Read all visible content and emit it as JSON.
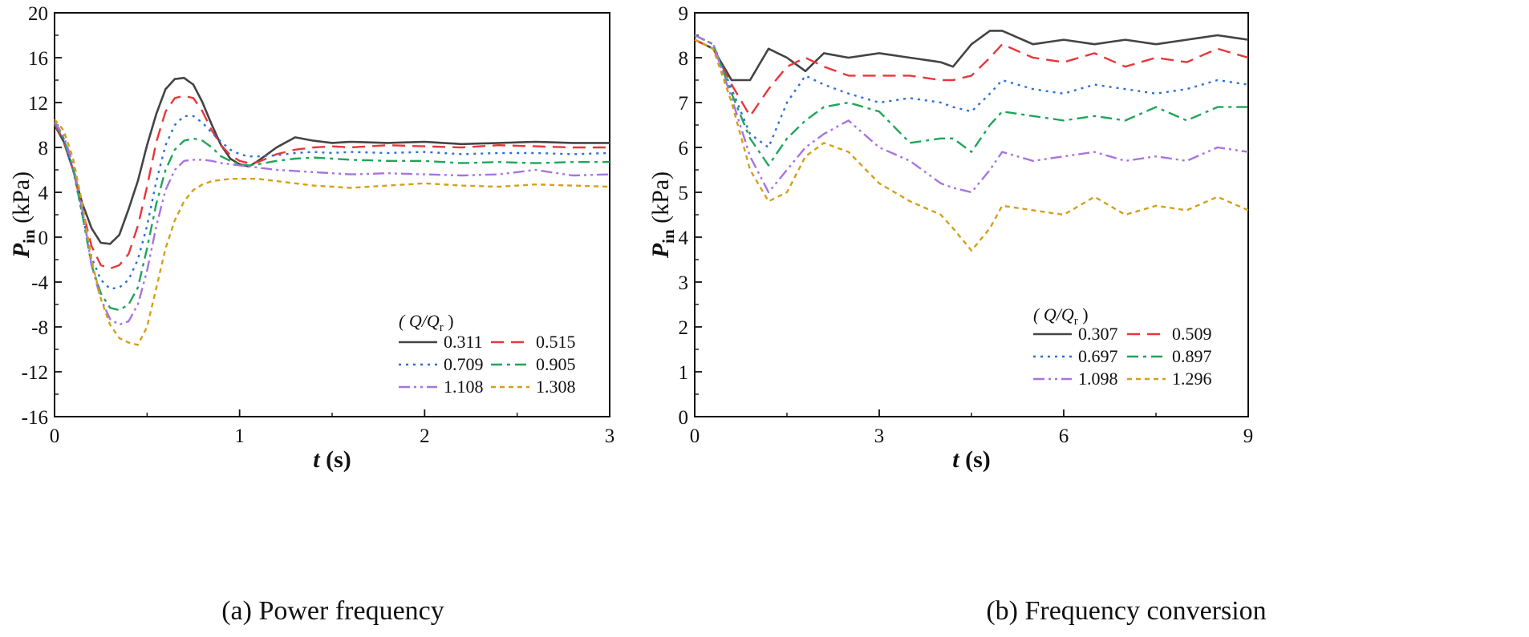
{
  "panels": [
    {
      "caption": "(a) Power frequency",
      "legend_title": "( Q/Q",
      "legend_title_sub": "r",
      "legend_title_close": " )"
    },
    {
      "caption": "(b) Frequency conversion",
      "legend_title": "( Q/Q",
      "legend_title_sub": "r",
      "legend_title_close": " )"
    }
  ],
  "chart_data": [
    {
      "type": "line",
      "caption": "(a) Power frequency",
      "xlabel_var": "t",
      "xlabel_unit": "(s)",
      "ylabel_var": "P",
      "ylabel_sub": "in",
      "ylabel_unit": "(kPa)",
      "xlim": [
        0,
        3
      ],
      "ylim": [
        -16,
        20
      ],
      "xticks": [
        0,
        1,
        2,
        3
      ],
      "yticks": [
        -16,
        -12,
        -8,
        -4,
        0,
        4,
        8,
        12,
        16,
        20
      ],
      "legend_title": "( Q/Qr )",
      "legend_position": "bottom-right",
      "series": [
        {
          "name": "0.311",
          "color": "#444444",
          "dash": "solid",
          "x": [
            0,
            0.05,
            0.1,
            0.15,
            0.2,
            0.25,
            0.3,
            0.35,
            0.4,
            0.45,
            0.5,
            0.55,
            0.6,
            0.65,
            0.7,
            0.75,
            0.8,
            0.85,
            0.9,
            0.95,
            1.0,
            1.05,
            1.1,
            1.2,
            1.3,
            1.4,
            1.5,
            1.6,
            1.8,
            2.0,
            2.2,
            2.4,
            2.6,
            2.8,
            3.0
          ],
          "y": [
            10.0,
            8.5,
            6.0,
            3.0,
            0.8,
            -0.5,
            -0.6,
            0.2,
            2.5,
            5.0,
            8.2,
            11.0,
            13.2,
            14.1,
            14.2,
            13.6,
            12.0,
            10.0,
            8.2,
            7.0,
            6.5,
            6.3,
            6.8,
            8.0,
            8.9,
            8.6,
            8.4,
            8.5,
            8.4,
            8.5,
            8.3,
            8.4,
            8.5,
            8.4,
            8.4
          ]
        },
        {
          "name": "0.515",
          "color": "#e8363a",
          "dash": "long",
          "x": [
            0,
            0.05,
            0.1,
            0.15,
            0.2,
            0.25,
            0.3,
            0.35,
            0.4,
            0.45,
            0.5,
            0.55,
            0.6,
            0.65,
            0.7,
            0.75,
            0.8,
            0.85,
            0.9,
            0.95,
            1.0,
            1.05,
            1.1,
            1.2,
            1.3,
            1.4,
            1.5,
            1.6,
            1.8,
            2.0,
            2.2,
            2.4,
            2.6,
            2.8,
            3.0
          ],
          "y": [
            10.1,
            8.6,
            6.0,
            2.5,
            -0.8,
            -2.5,
            -2.8,
            -2.5,
            -1.5,
            1.0,
            4.5,
            8.5,
            11.2,
            12.4,
            12.6,
            12.4,
            11.2,
            9.5,
            8.2,
            7.3,
            6.8,
            6.6,
            6.7,
            7.4,
            7.8,
            8.0,
            8.1,
            8.0,
            8.2,
            8.1,
            8.0,
            8.2,
            8.1,
            8.0,
            8.0
          ]
        },
        {
          "name": "0.709",
          "color": "#2d6fd6",
          "dash": "dot",
          "x": [
            0,
            0.05,
            0.1,
            0.15,
            0.2,
            0.25,
            0.3,
            0.35,
            0.4,
            0.45,
            0.5,
            0.55,
            0.6,
            0.65,
            0.7,
            0.75,
            0.8,
            0.85,
            0.9,
            0.95,
            1.0,
            1.05,
            1.1,
            1.2,
            1.3,
            1.4,
            1.5,
            1.6,
            1.8,
            2.0,
            2.2,
            2.4,
            2.6,
            2.8,
            3.0
          ],
          "y": [
            10.2,
            8.7,
            6.0,
            2.0,
            -1.8,
            -3.8,
            -4.6,
            -4.5,
            -3.8,
            -2.0,
            1.0,
            5.0,
            8.2,
            10.0,
            10.8,
            10.8,
            10.2,
            9.3,
            8.5,
            7.8,
            7.4,
            7.2,
            7.2,
            7.3,
            7.5,
            7.6,
            7.5,
            7.6,
            7.5,
            7.6,
            7.4,
            7.5,
            7.5,
            7.4,
            7.5
          ]
        },
        {
          "name": "0.905",
          "color": "#1fa55a",
          "dash": "dashdot",
          "x": [
            0,
            0.05,
            0.1,
            0.15,
            0.2,
            0.25,
            0.3,
            0.35,
            0.4,
            0.45,
            0.5,
            0.55,
            0.6,
            0.65,
            0.7,
            0.75,
            0.8,
            0.85,
            0.9,
            0.95,
            1.0,
            1.05,
            1.1,
            1.2,
            1.3,
            1.4,
            1.5,
            1.6,
            1.8,
            2.0,
            2.2,
            2.4,
            2.6,
            2.8,
            3.0
          ],
          "y": [
            10.2,
            8.8,
            6.2,
            2.0,
            -2.5,
            -5.0,
            -6.3,
            -6.5,
            -6.0,
            -4.5,
            -1.0,
            3.0,
            6.0,
            7.8,
            8.6,
            8.8,
            8.6,
            8.0,
            7.2,
            6.8,
            6.5,
            6.4,
            6.5,
            6.8,
            7.0,
            7.1,
            7.0,
            6.9,
            6.8,
            6.8,
            6.6,
            6.7,
            6.6,
            6.7,
            6.7
          ]
        },
        {
          "name": "1.108",
          "color": "#a774e0",
          "dash": "dashdotdot",
          "x": [
            0,
            0.05,
            0.1,
            0.15,
            0.2,
            0.25,
            0.3,
            0.35,
            0.4,
            0.45,
            0.5,
            0.55,
            0.6,
            0.65,
            0.7,
            0.75,
            0.8,
            0.85,
            0.9,
            0.95,
            1.0,
            1.05,
            1.1,
            1.2,
            1.3,
            1.4,
            1.5,
            1.6,
            1.8,
            2.0,
            2.2,
            2.4,
            2.6,
            2.8,
            3.0
          ],
          "y": [
            10.3,
            9.0,
            6.5,
            2.5,
            -2.5,
            -5.5,
            -7.3,
            -7.8,
            -7.5,
            -6.0,
            -3.0,
            1.0,
            4.2,
            6.0,
            6.8,
            6.9,
            6.9,
            6.8,
            6.6,
            6.5,
            6.4,
            6.3,
            6.2,
            6.0,
            5.9,
            5.8,
            5.7,
            5.6,
            5.7,
            5.6,
            5.5,
            5.6,
            6.0,
            5.5,
            5.6
          ]
        },
        {
          "name": "1.308",
          "color": "#d4a017",
          "dash": "shortdash",
          "x": [
            0,
            0.05,
            0.1,
            0.15,
            0.2,
            0.25,
            0.3,
            0.35,
            0.4,
            0.45,
            0.5,
            0.55,
            0.6,
            0.65,
            0.7,
            0.75,
            0.8,
            0.85,
            0.9,
            0.95,
            1.0,
            1.05,
            1.1,
            1.2,
            1.3,
            1.4,
            1.5,
            1.6,
            1.8,
            2.0,
            2.2,
            2.4,
            2.6,
            2.8,
            3.0
          ],
          "y": [
            10.5,
            9.5,
            7.0,
            3.0,
            -2.0,
            -5.5,
            -7.8,
            -9.0,
            -9.4,
            -9.6,
            -8.0,
            -4.5,
            -1.0,
            1.5,
            3.2,
            4.2,
            4.7,
            5.0,
            5.1,
            5.2,
            5.2,
            5.2,
            5.2,
            5.0,
            4.8,
            4.6,
            4.5,
            4.4,
            4.6,
            4.8,
            4.6,
            4.5,
            4.7,
            4.6,
            4.5
          ]
        }
      ]
    },
    {
      "type": "line",
      "caption": "(b) Frequency conversion",
      "xlabel_var": "t",
      "xlabel_unit": "(s)",
      "ylabel_var": "P",
      "ylabel_sub": "in",
      "ylabel_unit": "(kPa)",
      "xlim": [
        0,
        9
      ],
      "ylim": [
        0,
        9
      ],
      "xticks": [
        0,
        3,
        6,
        9
      ],
      "yticks": [
        0,
        1,
        2,
        3,
        4,
        5,
        6,
        7,
        8,
        9
      ],
      "legend_title": "( Q/Qr )",
      "legend_position": "bottom-right",
      "series": [
        {
          "name": "0.307",
          "color": "#444444",
          "dash": "solid",
          "x": [
            0,
            0.3,
            0.6,
            0.9,
            1.2,
            1.5,
            1.8,
            2.1,
            2.5,
            3.0,
            3.5,
            4.0,
            4.2,
            4.5,
            4.8,
            5.0,
            5.5,
            6.0,
            6.5,
            7.0,
            7.5,
            8.0,
            8.5,
            9.0
          ],
          "y": [
            8.4,
            8.2,
            7.5,
            7.5,
            8.2,
            8.0,
            7.7,
            8.1,
            8.0,
            8.1,
            8.0,
            7.9,
            7.8,
            8.3,
            8.6,
            8.6,
            8.3,
            8.4,
            8.3,
            8.4,
            8.3,
            8.4,
            8.5,
            8.4
          ]
        },
        {
          "name": "0.509",
          "color": "#e8363a",
          "dash": "long",
          "x": [
            0,
            0.3,
            0.6,
            0.9,
            1.2,
            1.5,
            1.8,
            2.1,
            2.5,
            3.0,
            3.5,
            4.0,
            4.2,
            4.5,
            4.8,
            5.0,
            5.5,
            6.0,
            6.5,
            7.0,
            7.5,
            8.0,
            8.5,
            9.0
          ],
          "y": [
            8.4,
            8.2,
            7.4,
            6.7,
            7.3,
            7.8,
            8.0,
            7.8,
            7.6,
            7.6,
            7.6,
            7.5,
            7.5,
            7.6,
            8.0,
            8.3,
            8.0,
            7.9,
            8.1,
            7.8,
            8.0,
            7.9,
            8.2,
            8.0
          ]
        },
        {
          "name": "0.697",
          "color": "#2d6fd6",
          "dash": "dot",
          "x": [
            0,
            0.3,
            0.6,
            0.9,
            1.2,
            1.5,
            1.8,
            2.1,
            2.5,
            3.0,
            3.5,
            4.0,
            4.2,
            4.5,
            4.8,
            5.0,
            5.5,
            6.0,
            6.5,
            7.0,
            7.5,
            8.0,
            8.5,
            9.0
          ],
          "y": [
            8.5,
            8.3,
            7.3,
            6.3,
            6.0,
            7.0,
            7.6,
            7.4,
            7.2,
            7.0,
            7.1,
            7.0,
            6.9,
            6.8,
            7.2,
            7.5,
            7.3,
            7.2,
            7.4,
            7.3,
            7.2,
            7.3,
            7.5,
            7.4
          ]
        },
        {
          "name": "0.897",
          "color": "#1fa55a",
          "dash": "dashdot",
          "x": [
            0,
            0.3,
            0.6,
            0.9,
            1.2,
            1.5,
            1.8,
            2.1,
            2.5,
            3.0,
            3.5,
            4.0,
            4.2,
            4.5,
            4.8,
            5.0,
            5.5,
            6.0,
            6.5,
            7.0,
            7.5,
            8.0,
            8.5,
            9.0
          ],
          "y": [
            8.5,
            8.3,
            7.2,
            6.2,
            5.6,
            6.2,
            6.6,
            6.9,
            7.0,
            6.8,
            6.1,
            6.2,
            6.2,
            5.9,
            6.5,
            6.8,
            6.7,
            6.6,
            6.7,
            6.6,
            6.9,
            6.6,
            6.9,
            6.9
          ]
        },
        {
          "name": "1.098",
          "color": "#a774e0",
          "dash": "dashdotdot",
          "x": [
            0,
            0.3,
            0.6,
            0.9,
            1.2,
            1.5,
            1.8,
            2.1,
            2.5,
            3.0,
            3.5,
            4.0,
            4.2,
            4.5,
            4.8,
            5.0,
            5.5,
            6.0,
            6.5,
            7.0,
            7.5,
            8.0,
            8.5,
            9.0
          ],
          "y": [
            8.5,
            8.3,
            7.1,
            5.8,
            5.0,
            5.5,
            6.0,
            6.3,
            6.6,
            6.0,
            5.7,
            5.2,
            5.1,
            5.0,
            5.5,
            5.9,
            5.7,
            5.8,
            5.9,
            5.7,
            5.8,
            5.7,
            6.0,
            5.9
          ]
        },
        {
          "name": "1.296",
          "color": "#d4a017",
          "dash": "shortdash",
          "x": [
            0,
            0.3,
            0.6,
            0.9,
            1.2,
            1.5,
            1.8,
            2.1,
            2.5,
            3.0,
            3.5,
            4.0,
            4.2,
            4.5,
            4.8,
            5.0,
            5.5,
            6.0,
            6.5,
            7.0,
            7.5,
            8.0,
            8.5,
            9.0
          ],
          "y": [
            8.4,
            8.2,
            7.0,
            5.5,
            4.8,
            5.0,
            5.8,
            6.1,
            5.9,
            5.2,
            4.8,
            4.5,
            4.2,
            3.7,
            4.2,
            4.7,
            4.6,
            4.5,
            4.9,
            4.5,
            4.7,
            4.6,
            4.9,
            4.6
          ]
        }
      ]
    }
  ]
}
